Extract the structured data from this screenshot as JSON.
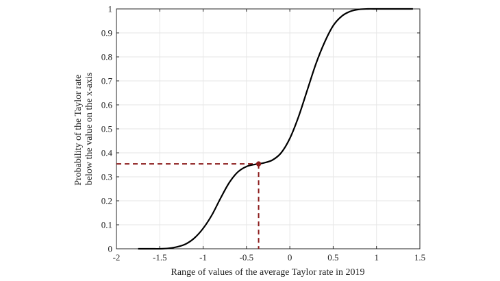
{
  "chart_data": {
    "type": "line",
    "title": "",
    "xlabel": "Range of values of the average Taylor rate in 2019",
    "ylabel_lines": [
      "Probability of the Taylor rate",
      "below the value on the x-axis"
    ],
    "xlim": [
      -2,
      1.5
    ],
    "ylim": [
      0,
      1
    ],
    "xticks": [
      -2,
      -1.5,
      -1,
      -0.5,
      0,
      0.5,
      1,
      1.5
    ],
    "xtick_labels": [
      "-2",
      "-1.5",
      "-1",
      "-0.5",
      "0",
      "0.5",
      "1",
      "1.5"
    ],
    "yticks": [
      0,
      0.1,
      0.2,
      0.3,
      0.4,
      0.5,
      0.6,
      0.7,
      0.8,
      0.9,
      1
    ],
    "ytick_labels": [
      "0",
      "0.1",
      "0.2",
      "0.3",
      "0.4",
      "0.5",
      "0.6",
      "0.7",
      "0.8",
      "0.9",
      "1"
    ],
    "grid": true,
    "series": [
      {
        "color": "#000000",
        "x": [
          -1.75,
          -1.6,
          -1.5,
          -1.4,
          -1.3,
          -1.2,
          -1.1,
          -1.0,
          -0.9,
          -0.8,
          -0.7,
          -0.6,
          -0.5,
          -0.4,
          -0.35,
          -0.3,
          -0.2,
          -0.1,
          0.0,
          0.1,
          0.2,
          0.3,
          0.4,
          0.5,
          0.6,
          0.7,
          0.8,
          0.9,
          1.0,
          1.1,
          1.2,
          1.3,
          1.42
        ],
        "y": [
          0.0,
          0.0,
          0.0,
          0.002,
          0.008,
          0.02,
          0.045,
          0.085,
          0.14,
          0.21,
          0.275,
          0.32,
          0.343,
          0.352,
          0.355,
          0.358,
          0.37,
          0.4,
          0.46,
          0.55,
          0.66,
          0.77,
          0.86,
          0.93,
          0.97,
          0.99,
          0.998,
          1.0,
          1.0,
          1.0,
          1.0,
          1.0,
          1.0
        ]
      }
    ],
    "marker": {
      "x": -0.36,
      "y": 0.354,
      "color": "#8b1a1a"
    }
  }
}
